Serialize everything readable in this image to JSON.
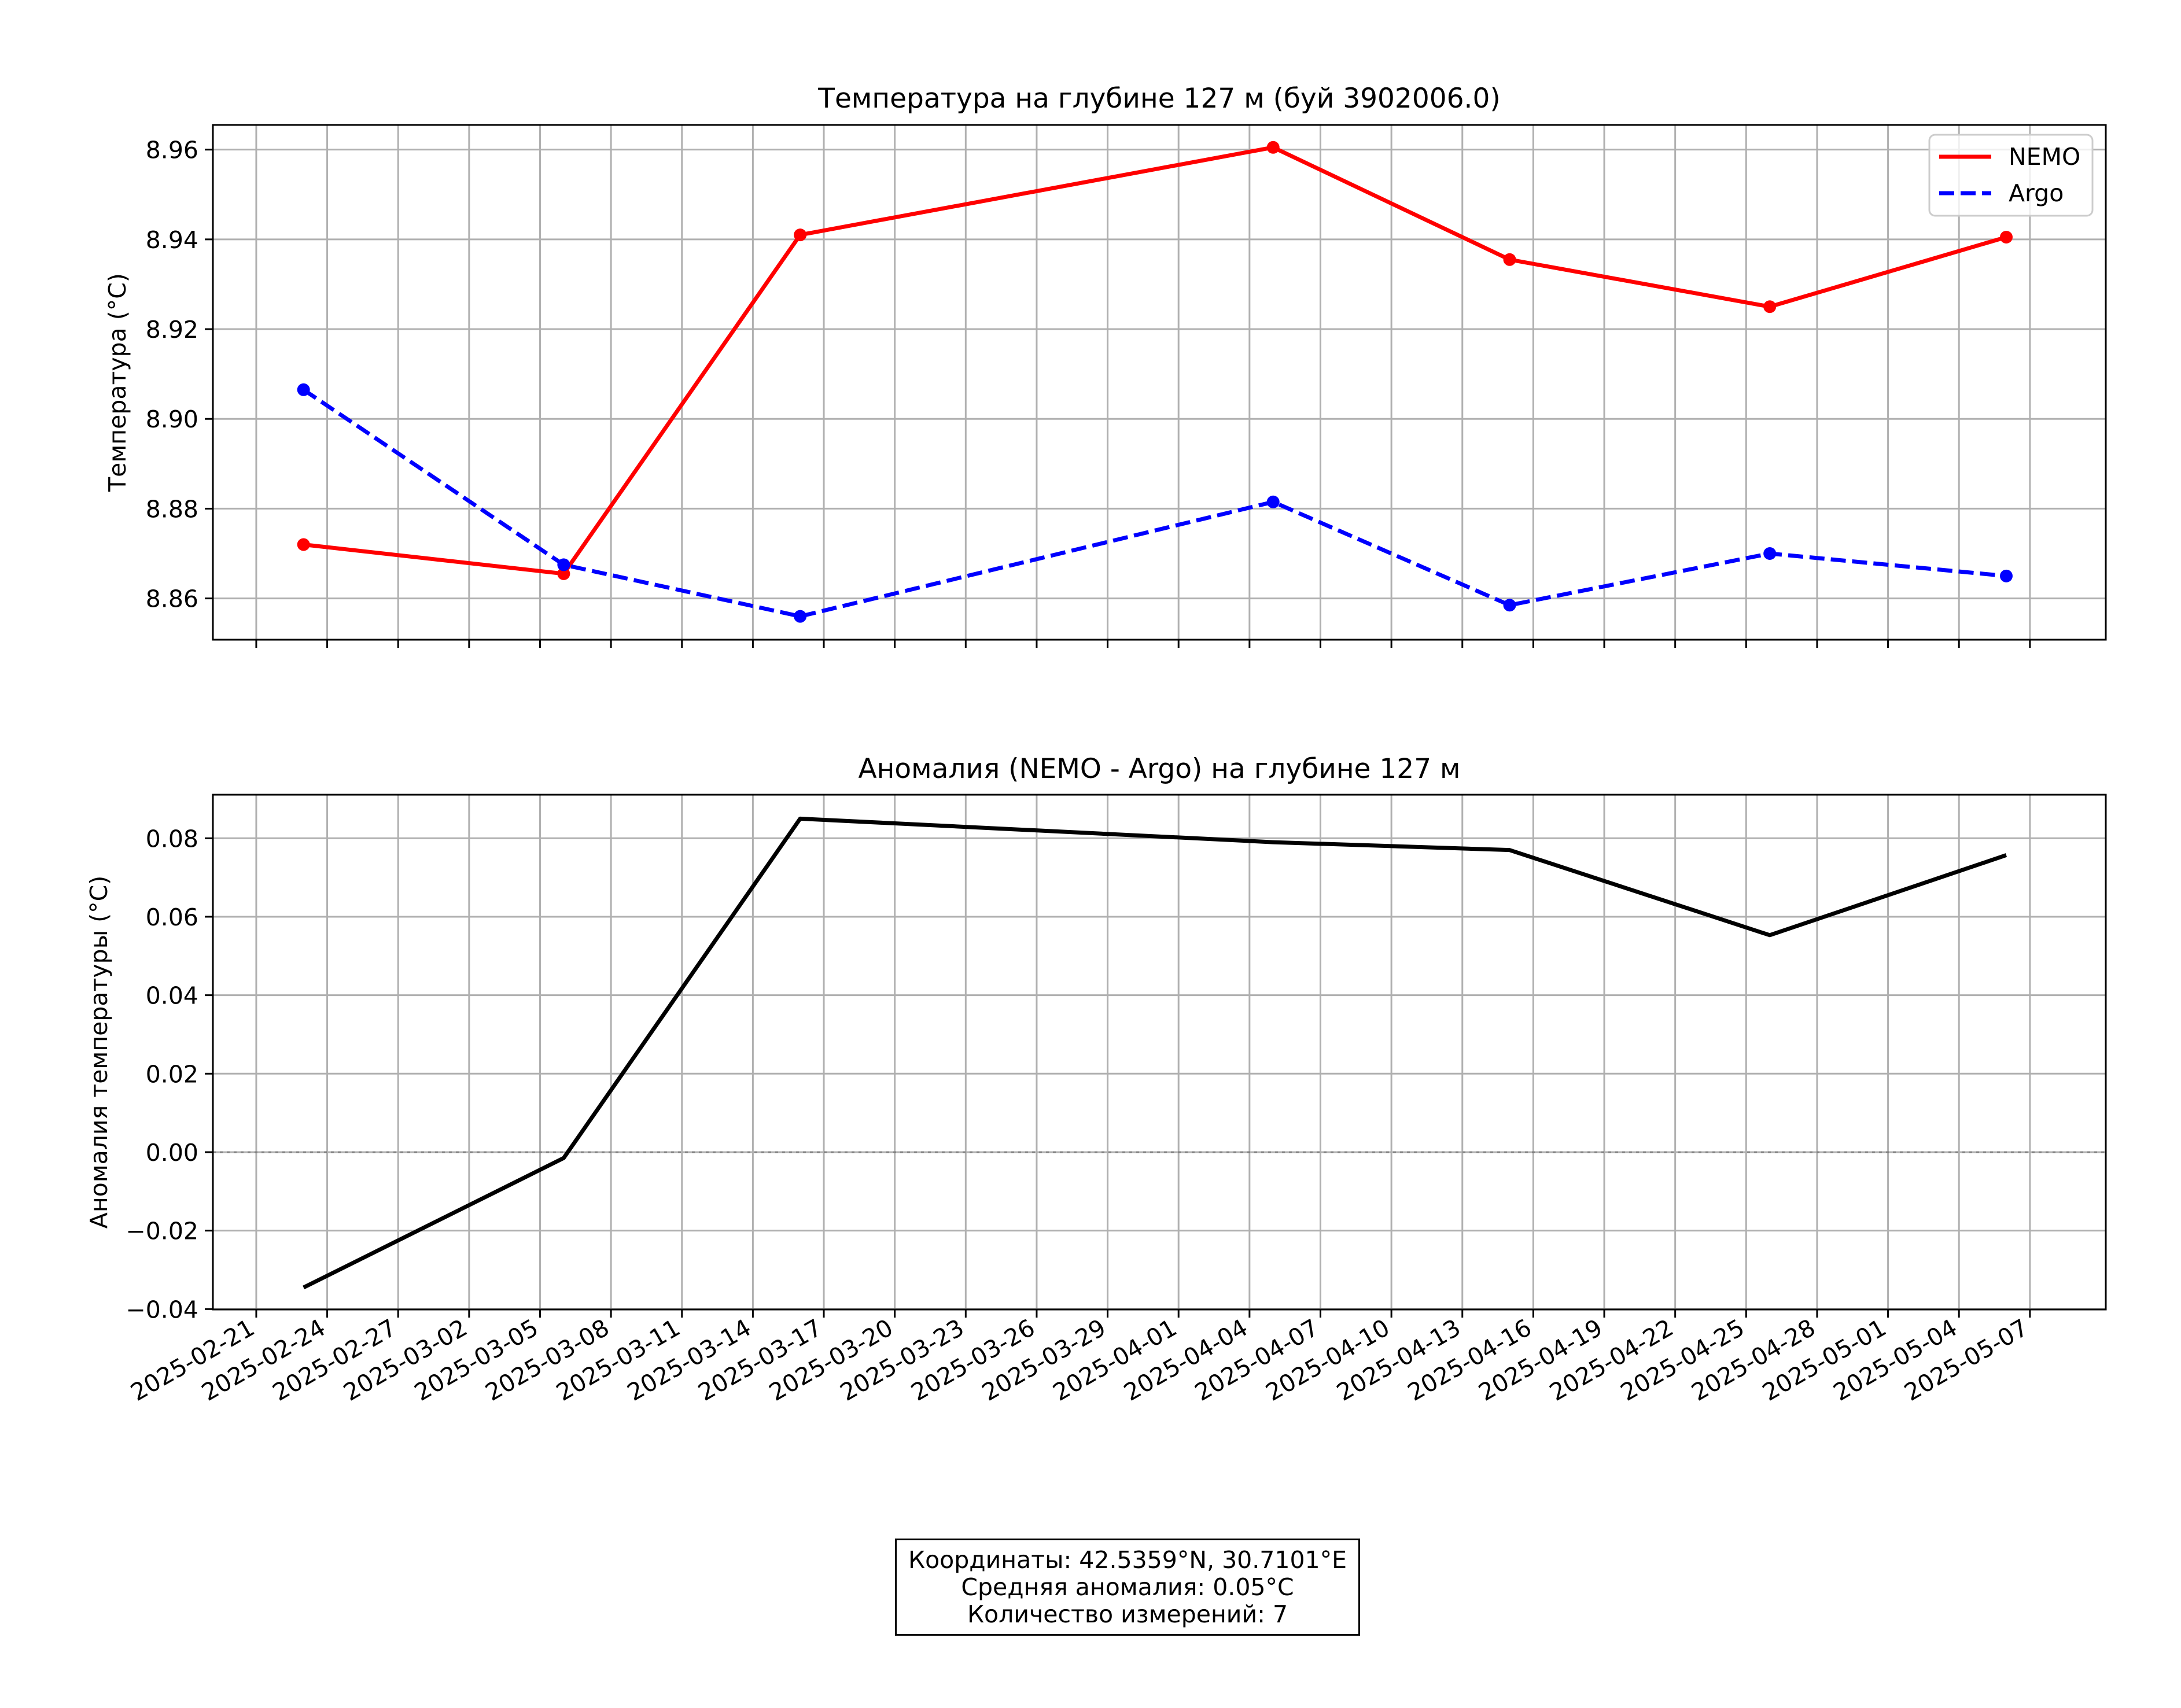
{
  "colors": {
    "nemo": "#ff0000",
    "argo": "#0000ff",
    "anomaly": "#000000",
    "grid": "#b0b0b0",
    "zero_line": "#808080"
  },
  "chart_data": [
    {
      "type": "line",
      "title": "Температура на глубине 127 м (буй 3902006.0)",
      "xlabel": "",
      "ylabel": "Температура (°C)",
      "x": [
        "2025-02-23",
        "2025-03-06",
        "2025-03-16",
        "2025-04-05",
        "2025-04-15",
        "2025-04-26",
        "2025-05-06"
      ],
      "series": [
        {
          "name": "NEMO",
          "style": "solid",
          "marker": "circle",
          "values": [
            8.872,
            8.8655,
            8.941,
            8.9605,
            8.9355,
            8.925,
            8.9405
          ]
        },
        {
          "name": "Argo",
          "style": "dashed",
          "marker": "circle",
          "values": [
            8.9065,
            8.8675,
            8.856,
            8.8815,
            8.8585,
            8.87,
            8.865
          ]
        }
      ],
      "ylim": [
        8.8508,
        8.9655
      ],
      "yticks": [
        "8.86",
        "8.88",
        "8.90",
        "8.92",
        "8.94",
        "8.96"
      ],
      "xlim": [
        "2025-02-19T04:00",
        "2025-05-10T05:00"
      ],
      "grid": true,
      "legend": "top-right"
    },
    {
      "type": "line",
      "title": "Аномалия (NEMO - Argo) на глубине 127 м",
      "xlabel": "",
      "ylabel": "Аномалия температуры (°C)",
      "x": [
        "2025-02-23",
        "2025-03-06",
        "2025-03-16",
        "2025-04-05",
        "2025-04-15",
        "2025-04-26",
        "2025-05-06"
      ],
      "series": [
        {
          "style": "solid",
          "values": [
            -0.0345,
            -0.0015,
            0.085,
            0.079,
            0.077,
            0.0553,
            0.0757
          ]
        }
      ],
      "reference_line": 0.0,
      "ylim": [
        -0.0401,
        0.0911
      ],
      "yticks": [
        "−0.04",
        "−0.02",
        "0.00",
        "0.02",
        "0.04",
        "0.06",
        "0.08"
      ],
      "xticks": [
        "2025-02-21",
        "2025-02-24",
        "2025-02-27",
        "2025-03-02",
        "2025-03-05",
        "2025-03-08",
        "2025-03-11",
        "2025-03-14",
        "2025-03-17",
        "2025-03-20",
        "2025-03-23",
        "2025-03-26",
        "2025-03-29",
        "2025-04-01",
        "2025-04-04",
        "2025-04-07",
        "2025-04-10",
        "2025-04-13",
        "2025-04-16",
        "2025-04-19",
        "2025-04-22",
        "2025-04-25",
        "2025-04-28",
        "2025-05-01",
        "2025-05-04",
        "2025-05-07"
      ],
      "xlim": [
        "2025-02-19T04:00",
        "2025-05-10T05:00"
      ],
      "grid": true
    }
  ],
  "info": {
    "line1": "Координаты: 42.5359°N, 30.7101°E",
    "line2": "Средняя аномалия: 0.05°C",
    "line3": "Количество измерений: 7"
  }
}
